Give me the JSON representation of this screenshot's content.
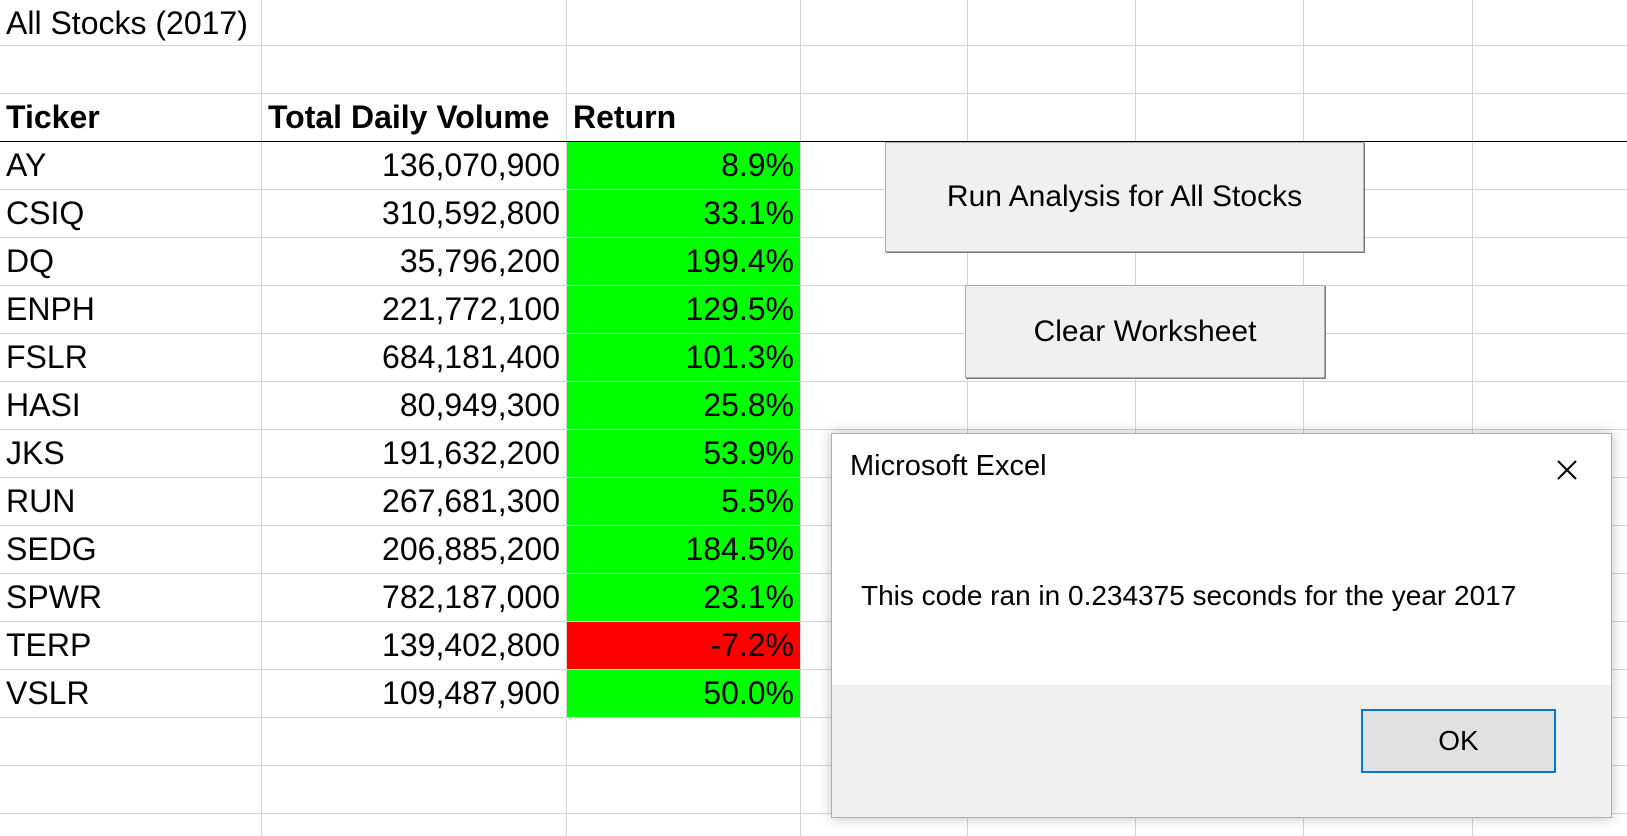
{
  "sheet": {
    "title": "All Stocks (2017)",
    "headers": {
      "ticker": "Ticker",
      "volume": "Total Daily Volume",
      "return": "Return"
    },
    "rows": [
      {
        "ticker": "AY",
        "volume": "136,070,900",
        "return": "8.9%",
        "status": "positive"
      },
      {
        "ticker": "CSIQ",
        "volume": "310,592,800",
        "return": "33.1%",
        "status": "positive"
      },
      {
        "ticker": "DQ",
        "volume": "35,796,200",
        "return": "199.4%",
        "status": "positive"
      },
      {
        "ticker": "ENPH",
        "volume": "221,772,100",
        "return": "129.5%",
        "status": "positive"
      },
      {
        "ticker": "FSLR",
        "volume": "684,181,400",
        "return": "101.3%",
        "status": "positive"
      },
      {
        "ticker": "HASI",
        "volume": "80,949,300",
        "return": "25.8%",
        "status": "positive"
      },
      {
        "ticker": "JKS",
        "volume": "191,632,200",
        "return": "53.9%",
        "status": "positive"
      },
      {
        "ticker": "RUN",
        "volume": "267,681,300",
        "return": "5.5%",
        "status": "positive"
      },
      {
        "ticker": "SEDG",
        "volume": "206,885,200",
        "return": "184.5%",
        "status": "positive"
      },
      {
        "ticker": "SPWR",
        "volume": "782,187,000",
        "return": "23.1%",
        "status": "positive"
      },
      {
        "ticker": "TERP",
        "volume": "139,402,800",
        "return": "-7.2%",
        "status": "negative"
      },
      {
        "ticker": "VSLR",
        "volume": "109,487,900",
        "return": "50.0%",
        "status": "positive"
      }
    ]
  },
  "buttons": {
    "run_analysis": "Run Analysis for All Stocks",
    "clear_worksheet": "Clear Worksheet"
  },
  "dialog": {
    "title": "Microsoft Excel",
    "message": "This code ran in 0.234375 seconds for the year 2017",
    "ok_label": "OK"
  },
  "colors": {
    "positive": "#00ff00",
    "negative": "#ff0000",
    "button_face": "#f0f0f0",
    "focus_border": "#0078d7"
  },
  "icons": {
    "close": "close-icon"
  }
}
